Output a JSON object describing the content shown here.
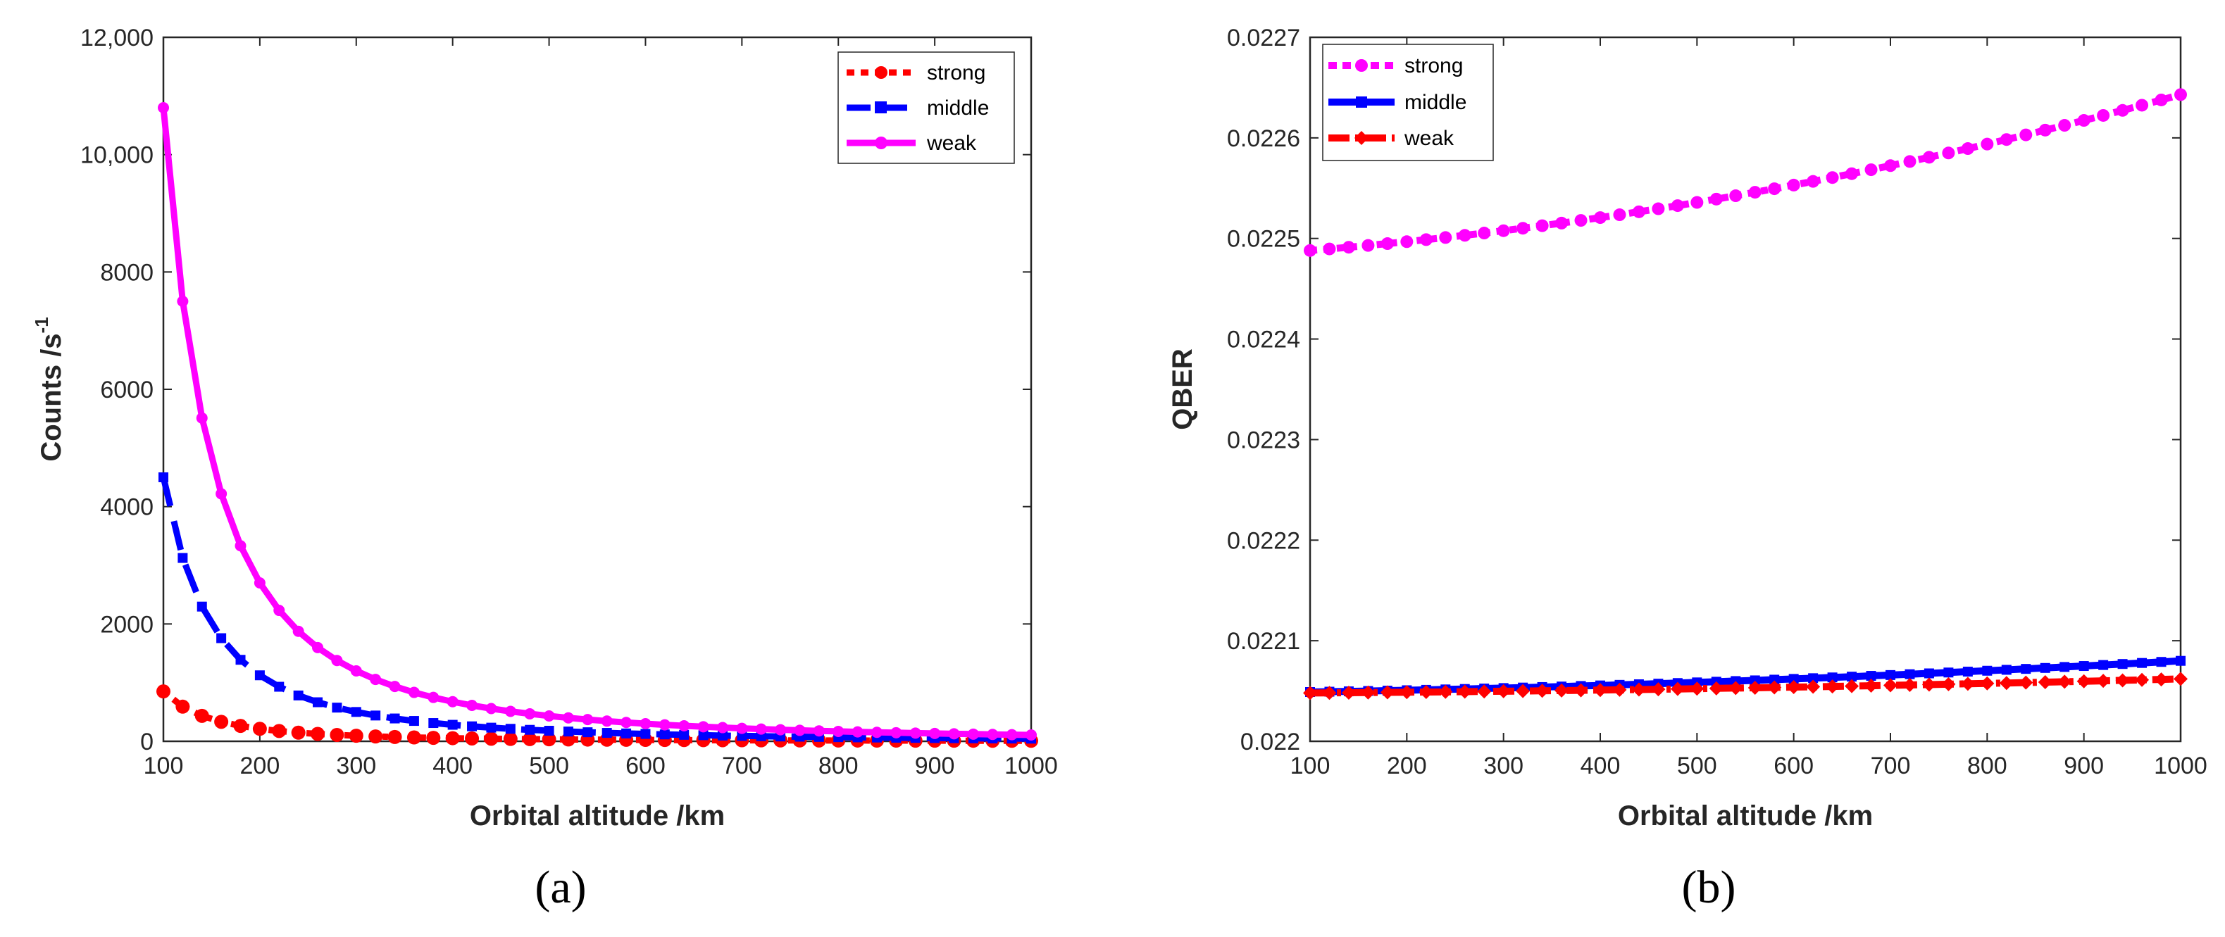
{
  "colors": {
    "strong_a": "#ff0000",
    "middle": "#0000ff",
    "weak_a": "#ff00ff",
    "strong_b": "#ff00ff",
    "weak_b": "#ff0000"
  },
  "chart_data": [
    {
      "type": "line",
      "panel_label": "(a)",
      "xlabel": "Orbital altitude /km",
      "ylabel_main": "Counts /s",
      "ylabel_sup": "-1",
      "xlim": [
        100,
        1000
      ],
      "ylim": [
        0,
        12000
      ],
      "xticks": [
        100,
        200,
        300,
        400,
        500,
        600,
        700,
        800,
        900,
        1000
      ],
      "xtick_labels": [
        "100",
        "200",
        "300",
        "400",
        "500",
        "600",
        "700",
        "800",
        "900",
        "1000"
      ],
      "yticks": [
        0,
        2000,
        4000,
        6000,
        8000,
        10000,
        12000
      ],
      "ytick_labels": [
        "0",
        "2000",
        "4000",
        "6000",
        "8000",
        "10,000",
        "12,000"
      ],
      "legend_position": "top-right",
      "series": [
        {
          "name": "strong",
          "style": "dotted",
          "values_at_100": 850,
          "model": "inverse-square"
        },
        {
          "name": "middle",
          "style": "dashed",
          "values_at_100": 4500,
          "model": "inverse-square"
        },
        {
          "name": "weak",
          "style": "solid",
          "values_at_100": 10800,
          "model": "inverse-square"
        }
      ],
      "x": [
        100,
        120,
        140,
        160,
        180,
        200,
        220,
        240,
        260,
        280,
        300,
        320,
        340,
        360,
        380,
        400,
        420,
        440,
        460,
        480,
        500,
        520,
        540,
        560,
        580,
        600,
        620,
        640,
        660,
        680,
        700,
        720,
        740,
        760,
        780,
        800,
        820,
        840,
        860,
        880,
        900,
        920,
        940,
        960,
        980,
        1000
      ]
    },
    {
      "type": "line",
      "panel_label": "(b)",
      "xlabel": "Orbital altitude /km",
      "ylabel_main": "QBER",
      "xlim": [
        100,
        1000
      ],
      "ylim": [
        0.022,
        0.0227
      ],
      "xticks": [
        100,
        200,
        300,
        400,
        500,
        600,
        700,
        800,
        900,
        1000
      ],
      "xtick_labels": [
        "100",
        "200",
        "300",
        "400",
        "500",
        "600",
        "700",
        "800",
        "900",
        "1000"
      ],
      "yticks": [
        0.022,
        0.0221,
        0.0222,
        0.0223,
        0.0224,
        0.0225,
        0.0226,
        0.0227
      ],
      "ytick_labels": [
        "0.022",
        "0.0221",
        "0.0222",
        "0.0223",
        "0.0224",
        "0.0225",
        "0.0226",
        "0.0227"
      ],
      "legend_position": "top-left",
      "series": [
        {
          "name": "strong",
          "style": "dotted",
          "start": 0.022488,
          "end": 0.022643
        },
        {
          "name": "middle",
          "style": "solid",
          "start": 0.022049,
          "end": 0.02208
        },
        {
          "name": "weak",
          "style": "dash-dot",
          "start": 0.022048,
          "end": 0.022062
        }
      ],
      "x": [
        100,
        120,
        140,
        160,
        180,
        200,
        220,
        240,
        260,
        280,
        300,
        320,
        340,
        360,
        380,
        400,
        420,
        440,
        460,
        480,
        500,
        520,
        540,
        560,
        580,
        600,
        620,
        640,
        660,
        680,
        700,
        720,
        740,
        760,
        780,
        800,
        820,
        840,
        860,
        880,
        900,
        920,
        940,
        960,
        980,
        1000
      ]
    }
  ]
}
